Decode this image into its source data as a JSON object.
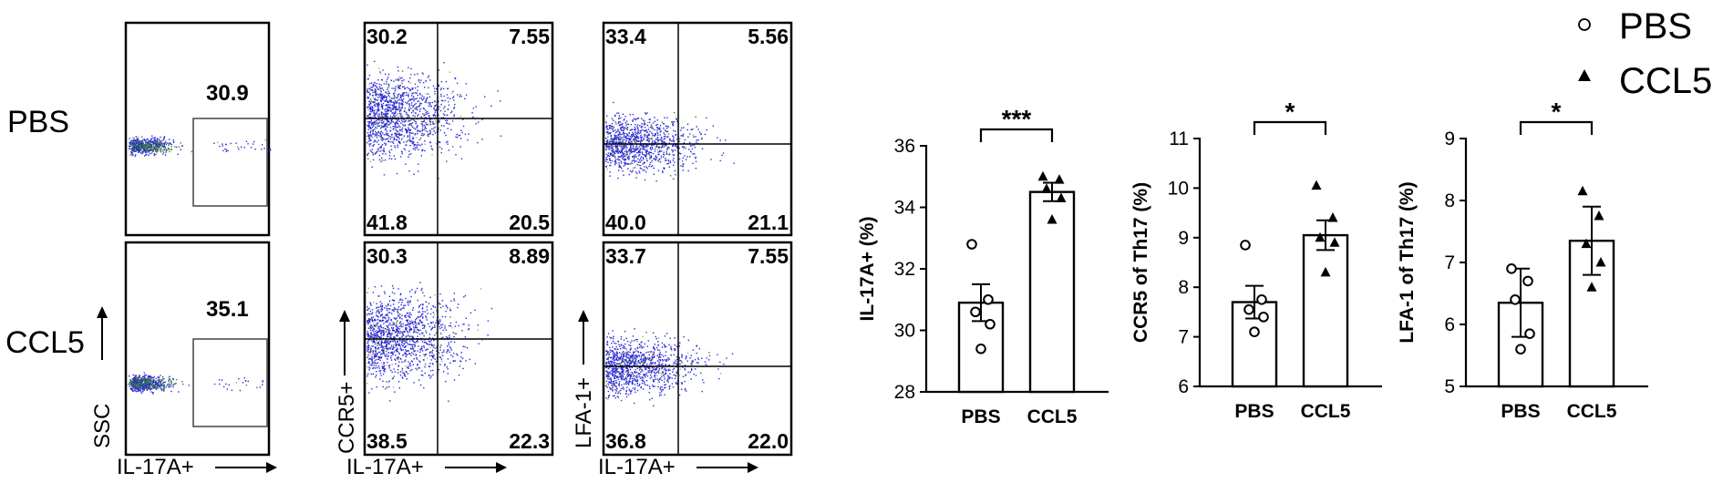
{
  "flow": {
    "row_labels": [
      "PBS",
      "CCL5"
    ],
    "gate_values": [
      "30.9",
      "35.1"
    ],
    "ccr5_quadrants": [
      {
        "ul": "30.2",
        "ur": "7.55",
        "ll": "41.8",
        "lr": "20.5"
      },
      {
        "ul": "30.3",
        "ur": "8.89",
        "ll": "38.5",
        "lr": "22.3"
      }
    ],
    "lfa1_quadrants": [
      {
        "ul": "33.4",
        "ur": "5.56",
        "ll": "40.0",
        "lr": "21.1"
      },
      {
        "ul": "33.7",
        "ur": "7.55",
        "ll": "36.8",
        "lr": "22.0"
      }
    ],
    "axis_labels": {
      "x": "IL-17A+",
      "y_gate": "SSC",
      "y_ccr5": "CCR5+",
      "y_lfa1": "LFA-1+"
    },
    "colors": {
      "dots": "#2b2bd8",
      "dots_alt": "#3a7a3a",
      "dots_warm": "#c8a060"
    }
  },
  "legend": {
    "items": [
      {
        "label": "PBS",
        "marker": "open-circle"
      },
      {
        "label": "CCL5",
        "marker": "filled-triangle"
      }
    ]
  },
  "chart_data": [
    {
      "type": "bar",
      "ylabel": "IL-17A+ (%)",
      "categories": [
        "PBS",
        "CCL5"
      ],
      "values": [
        30.9,
        34.5
      ],
      "errors": [
        0.6,
        0.3
      ],
      "points": [
        [
          32.8,
          31.0,
          30.6,
          30.2,
          29.4
        ],
        [
          35.0,
          34.9,
          34.6,
          34.3,
          33.6
        ]
      ],
      "ylim": [
        28,
        36
      ],
      "yticks": [
        28,
        30,
        32,
        34,
        36
      ],
      "yticklabels": [
        "28",
        "30",
        "32",
        "34",
        "36"
      ],
      "significance": "***"
    },
    {
      "type": "bar",
      "ylabel": "CCR5 of Th17 (%)",
      "categories": [
        "PBS",
        "CCL5"
      ],
      "values": [
        7.7,
        9.05
      ],
      "errors": [
        0.33,
        0.3
      ],
      "points": [
        [
          8.85,
          7.75,
          7.55,
          7.4,
          7.1
        ],
        [
          10.05,
          9.4,
          9.0,
          8.9,
          8.3
        ]
      ],
      "ylim": [
        6,
        11
      ],
      "yticks": [
        6,
        7,
        8,
        9,
        10,
        11
      ],
      "yticklabels": [
        "6",
        "7",
        "8",
        "9",
        "10",
        "11"
      ],
      "significance": "*"
    },
    {
      "type": "bar",
      "ylabel": "LFA-1 of Th17 (%)",
      "categories": [
        "PBS",
        "CCL5"
      ],
      "values": [
        6.35,
        7.35
      ],
      "errors": [
        0.55,
        0.55
      ],
      "points": [
        [
          6.9,
          6.7,
          6.4,
          5.85,
          5.6
        ],
        [
          8.15,
          7.75,
          7.3,
          7.0,
          6.6
        ]
      ],
      "ylim": [
        5,
        9
      ],
      "yticks": [
        5,
        6,
        7,
        8,
        9
      ],
      "yticklabels": [
        "5",
        "6",
        "7",
        "8",
        "9"
      ],
      "significance": "*"
    }
  ]
}
